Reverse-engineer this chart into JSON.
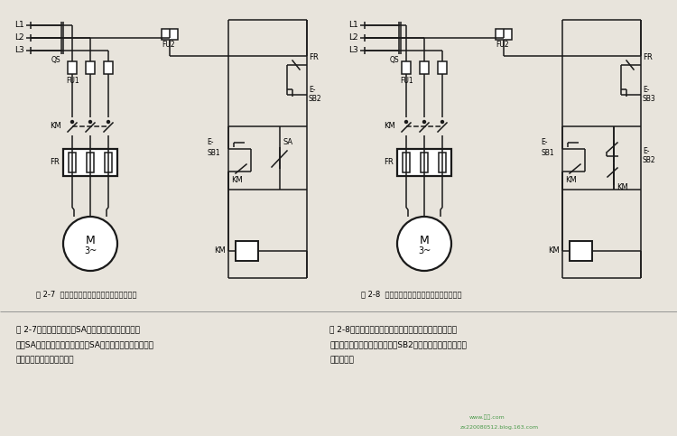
{
  "bg_color": "#e8e4dc",
  "line_color": "#1a1a1a",
  "title1": "图 2-7  带手动开关的点动与连续运行控制线路",
  "title2": "图 2-8  带复合按鈕的点动与连续运行控制线路",
  "desc1_line1": "图 2-7所示为带手动开关SA的点动与连续运行控制线",
  "desc1_line2": "路，SA串接在自锁电路中，当把SA打开或闭合时，就能实现",
  "desc1_line3": "电动机的点动或连续控制。",
  "desc2_line1": "图 2-8所示为复合按鈕的点动与连续运行的控制线路。在",
  "desc2_line2": "控制线路中增加了一个复合按鈕SB2，从而达到点动与连续运",
  "desc2_line3": "转的控制。"
}
